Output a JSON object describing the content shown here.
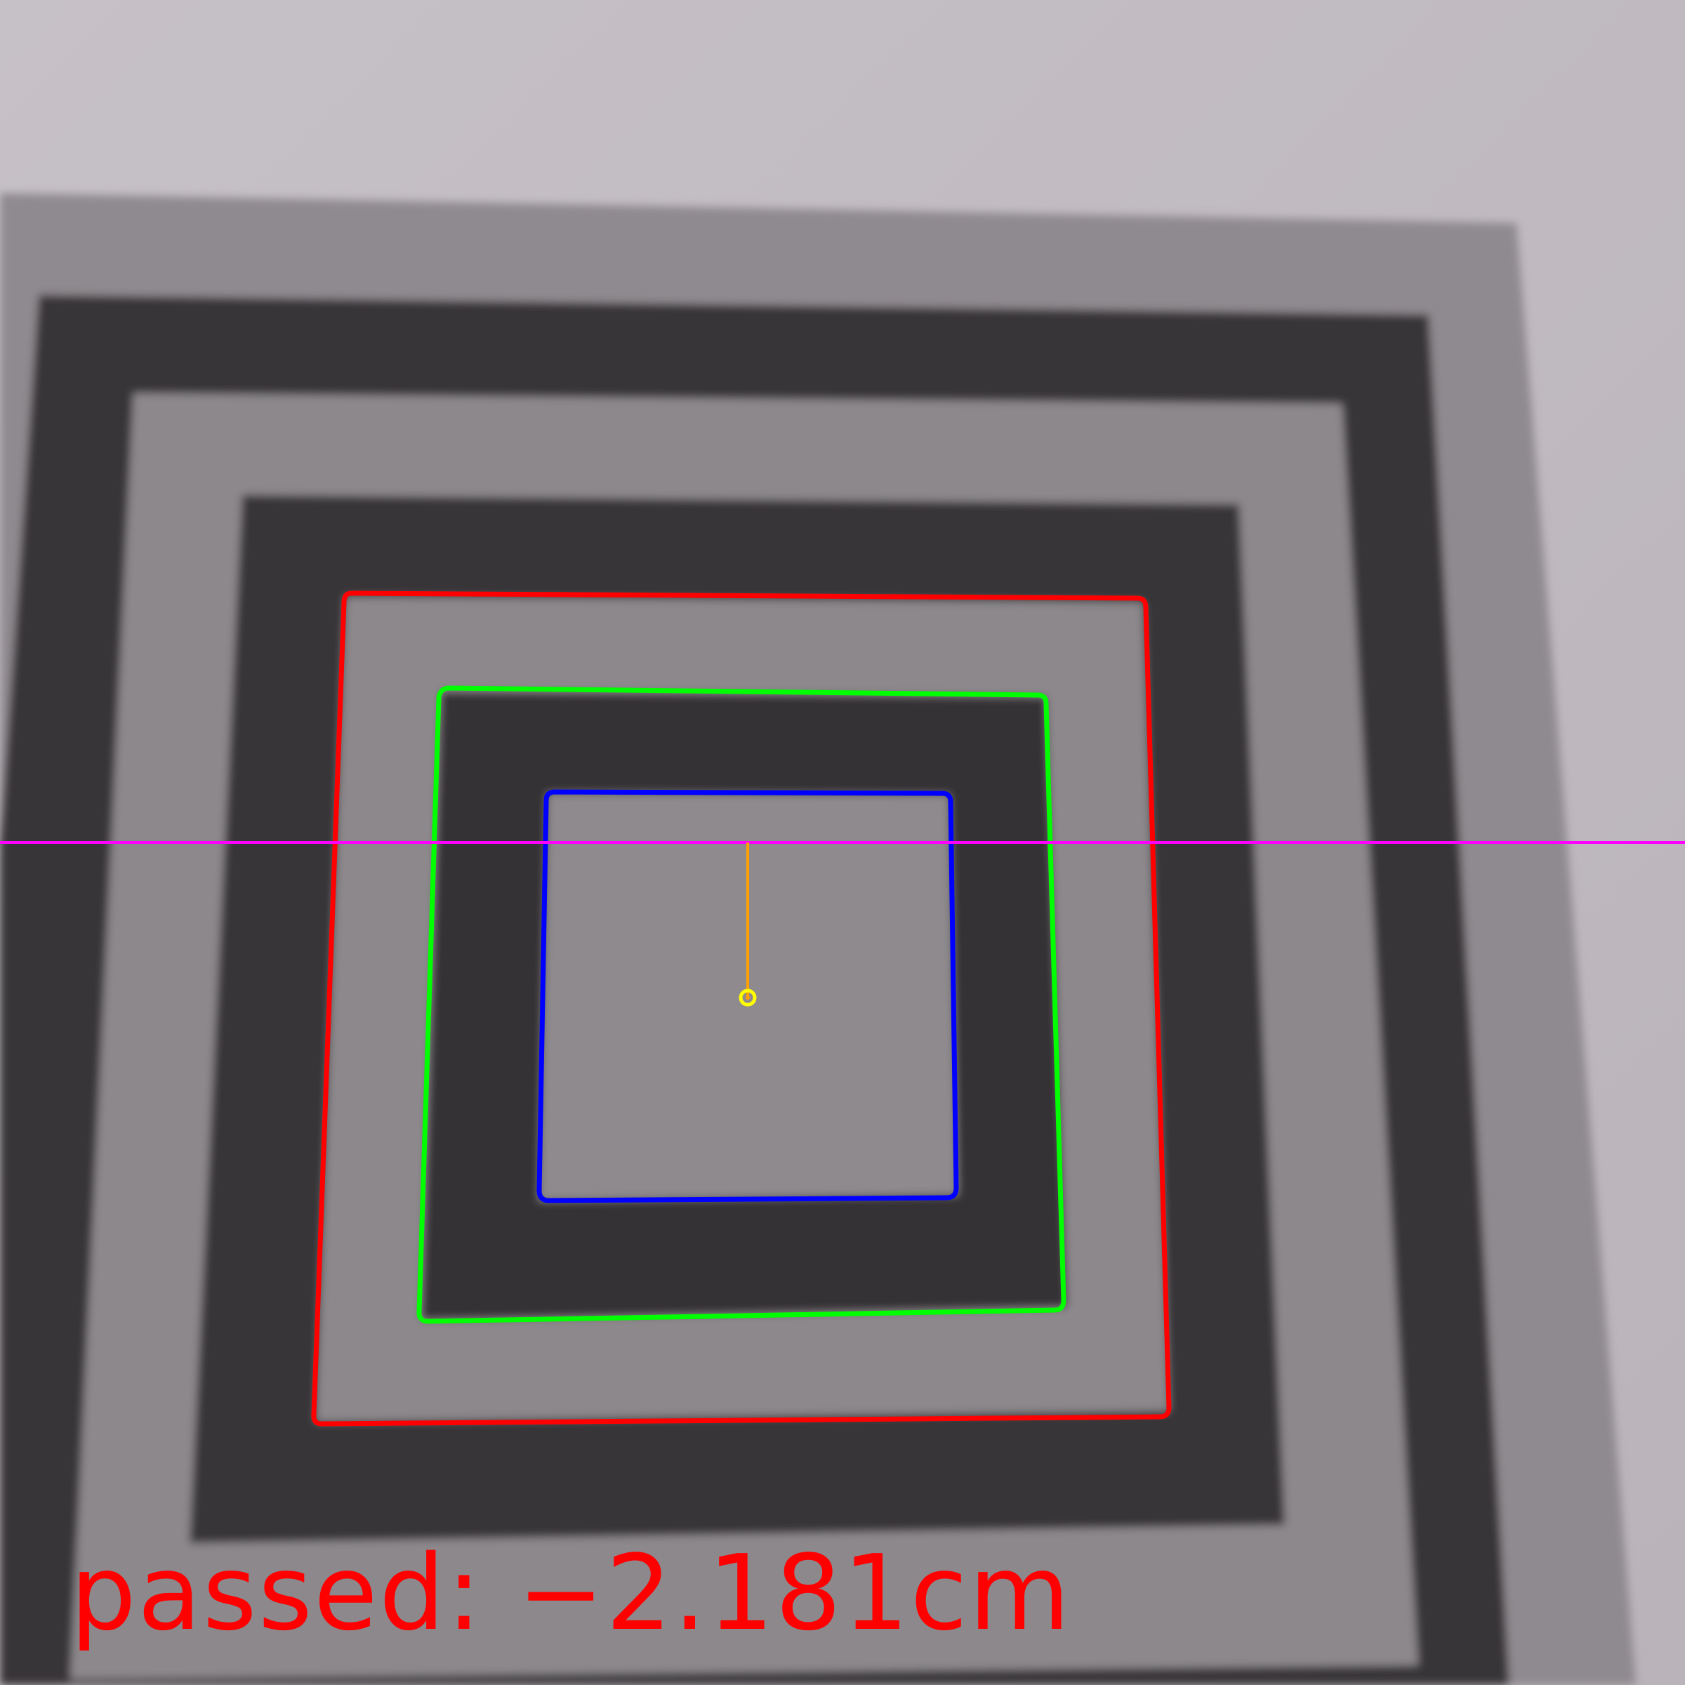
{
  "result": {
    "label": "passed:",
    "value": "−2.181cm",
    "color": "#ff0000"
  },
  "overlay": {
    "outer_contour_color": "#ff0000",
    "middle_contour_color": "#00ff00",
    "inner_contour_color": "#0000ff",
    "reference_line_color": "#ff00ff",
    "offset_line_color": "#ffa000",
    "center_marker_color": "#ffff00"
  }
}
